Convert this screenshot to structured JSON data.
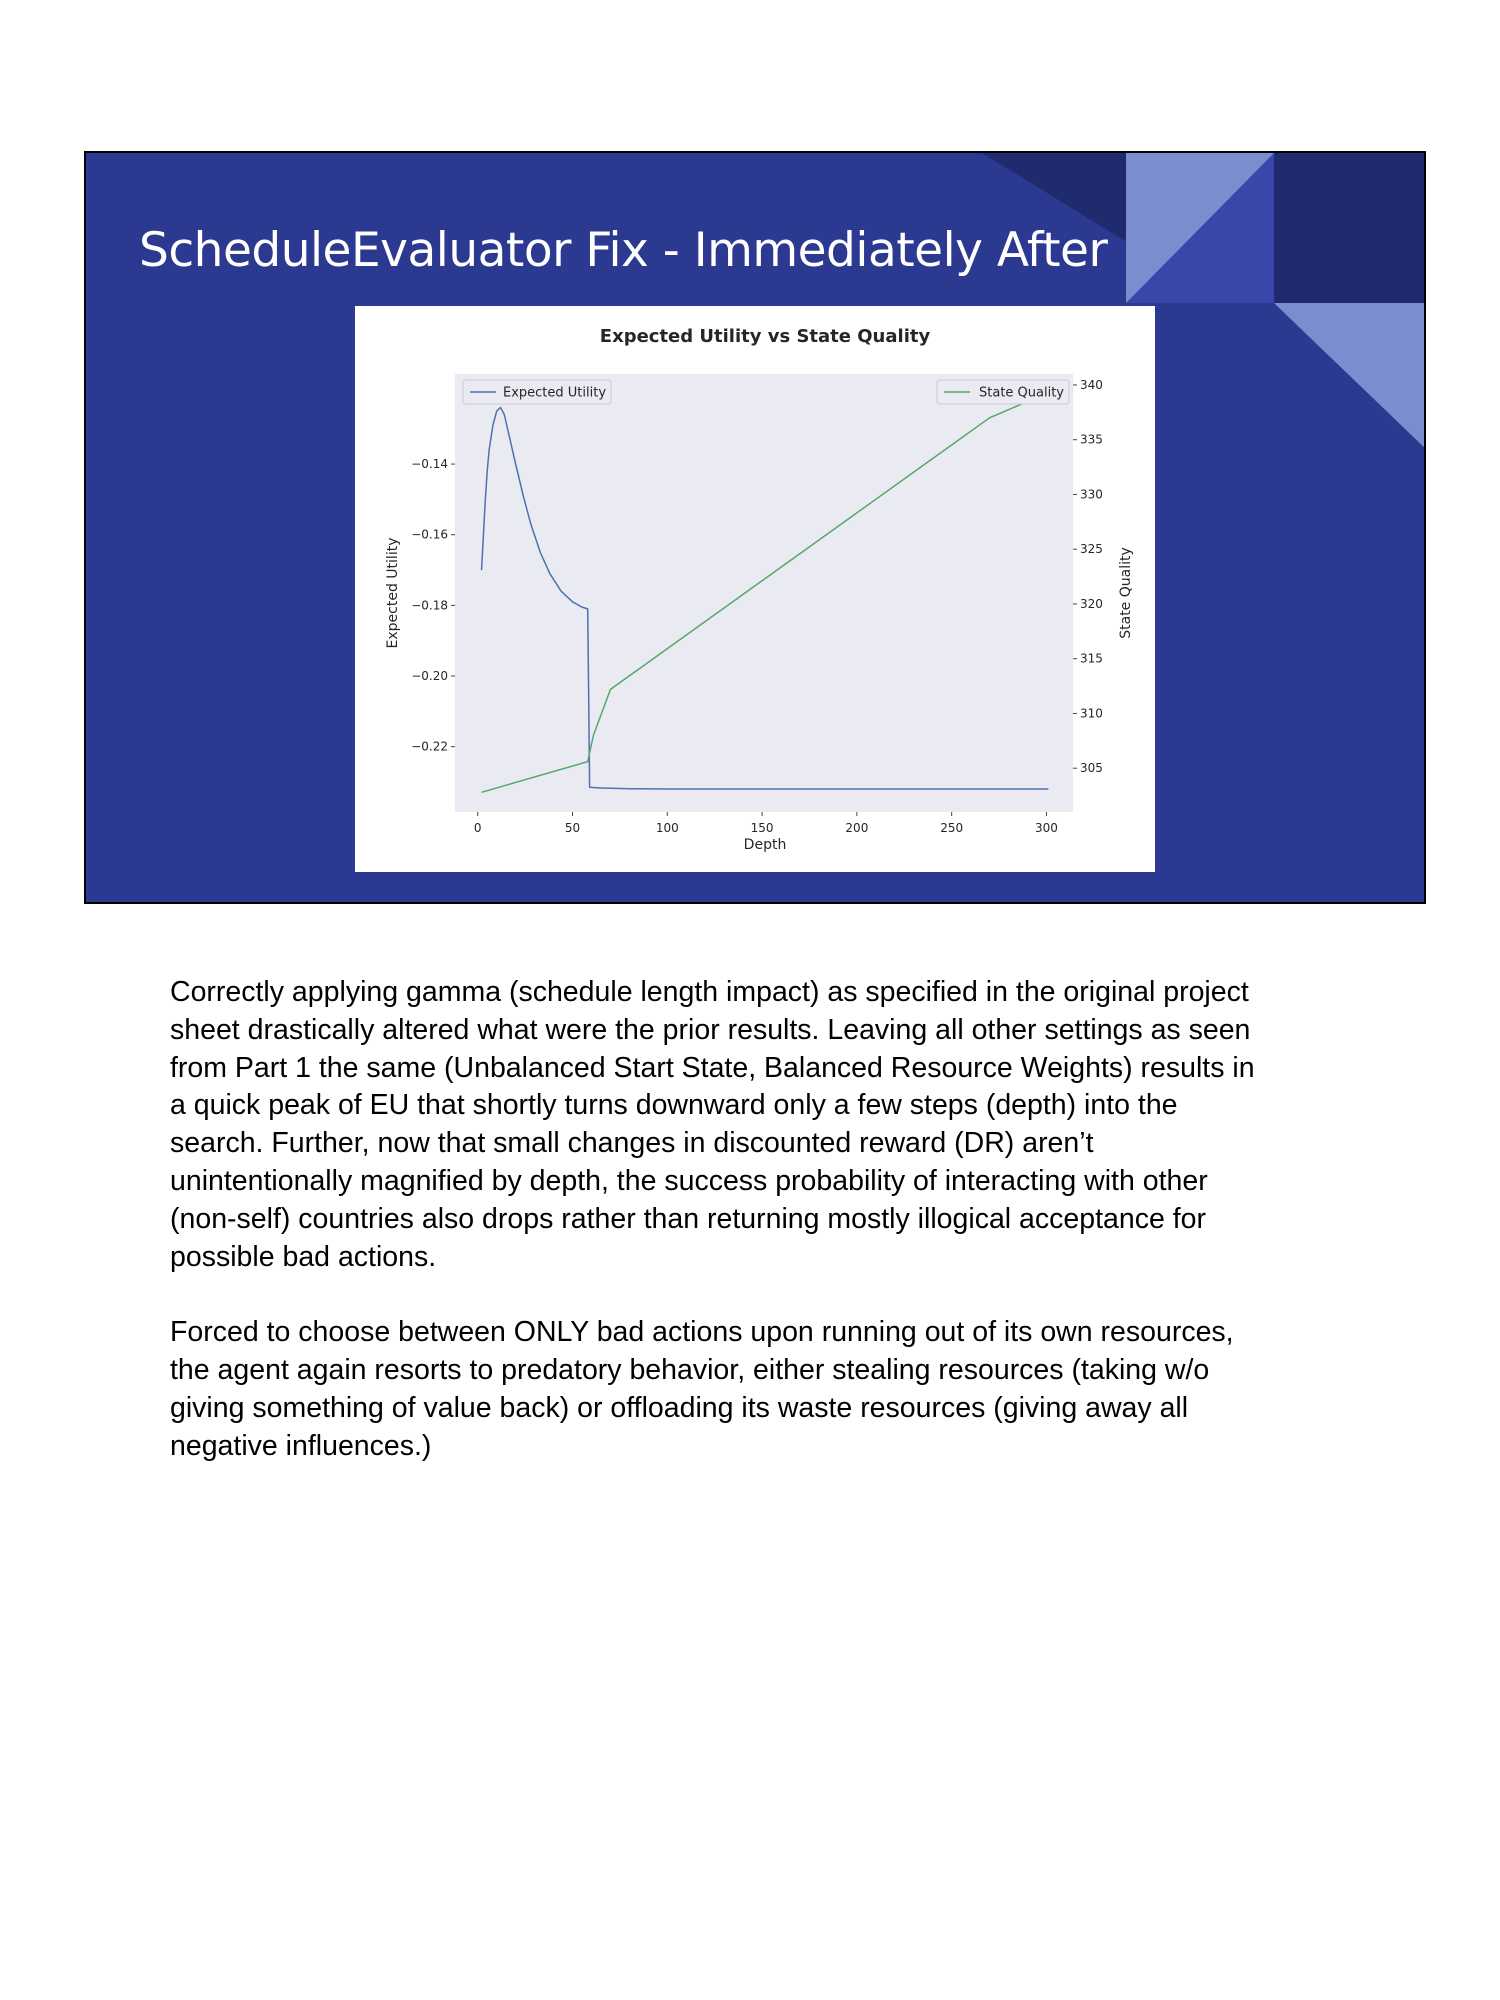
{
  "slide": {
    "title": "ScheduleEvaluator Fix - Immediately After",
    "background_color": "#2c3990"
  },
  "chart_data": {
    "type": "line",
    "title": "Expected Utility vs State Quality",
    "xlabel": "Depth",
    "ylabel": "Expected Utility",
    "y2label": "State Quality",
    "xlim": [
      -12,
      314
    ],
    "ylim": [
      -0.2385,
      -0.1145
    ],
    "y2lim": [
      301,
      341
    ],
    "x_ticks": [
      0,
      50,
      100,
      150,
      200,
      250,
      300
    ],
    "x_tick_labels": [
      "0",
      "50",
      "100",
      "150",
      "200",
      "250",
      "300"
    ],
    "y_ticks": [
      -0.14,
      -0.16,
      -0.18,
      -0.2,
      -0.22
    ],
    "y_tick_labels": [
      "−0.14",
      "−0.16",
      "−0.18",
      "−0.20",
      "−0.22"
    ],
    "y2_ticks": [
      305,
      310,
      315,
      320,
      325,
      330,
      335,
      340
    ],
    "y2_tick_labels": [
      "305",
      "310",
      "315",
      "320",
      "325",
      "330",
      "335",
      "340"
    ],
    "grid": false,
    "background": "#eaeaf2",
    "legend": [
      {
        "name": "Expected Utility",
        "position": "top-left"
      },
      {
        "name": "State Quality",
        "position": "top-right"
      }
    ],
    "series": [
      {
        "name": "Expected Utility",
        "axis": "left",
        "color": "#4c72b0",
        "x": [
          2,
          3,
          4,
          5,
          6,
          8,
          10,
          12,
          14,
          17,
          20,
          24,
          28,
          33,
          38,
          44,
          50,
          55,
          58,
          58.5,
          59,
          65,
          80,
          100,
          150,
          200,
          250,
          301
        ],
        "y": [
          -0.17,
          -0.16,
          -0.15,
          -0.142,
          -0.136,
          -0.129,
          -0.125,
          -0.124,
          -0.126,
          -0.133,
          -0.14,
          -0.149,
          -0.157,
          -0.165,
          -0.171,
          -0.176,
          -0.179,
          -0.1805,
          -0.181,
          -0.205,
          -0.2315,
          -0.2317,
          -0.2319,
          -0.232,
          -0.232,
          -0.232,
          -0.232,
          -0.232
        ]
      },
      {
        "name": "State Quality",
        "axis": "right",
        "color": "#55a868",
        "x": [
          2,
          58,
          61,
          70,
          270,
          301
        ],
        "y": [
          302.8,
          305.6,
          308,
          312.2,
          337,
          339.3
        ]
      }
    ]
  },
  "body": {
    "paragraphs": [
      [
        "Correctly applying gamma (schedule length impact) as specified in the original project",
        "sheet drastically altered what were the prior results. Leaving all other settings as seen",
        "from Part 1 the same (Unbalanced Start State, Balanced Resource Weights) results in",
        "a quick peak of EU that shortly turns downward only a few steps (depth) into the",
        "search. Further, now that small changes in discounted reward (DR) aren’t",
        "unintentionally magnified by depth, the success probability of interacting with other",
        "(non-self) countries also drops rather than returning mostly illogical acceptance for",
        "possible bad actions."
      ],
      [
        "Forced to choose between ONLY bad actions upon running out of its own resources,",
        "the agent again resorts to predatory behavior, either stealing resources (taking w/o",
        "giving something of value back) or offloading its waste resources (giving away all",
        "negative influences.)"
      ]
    ]
  }
}
